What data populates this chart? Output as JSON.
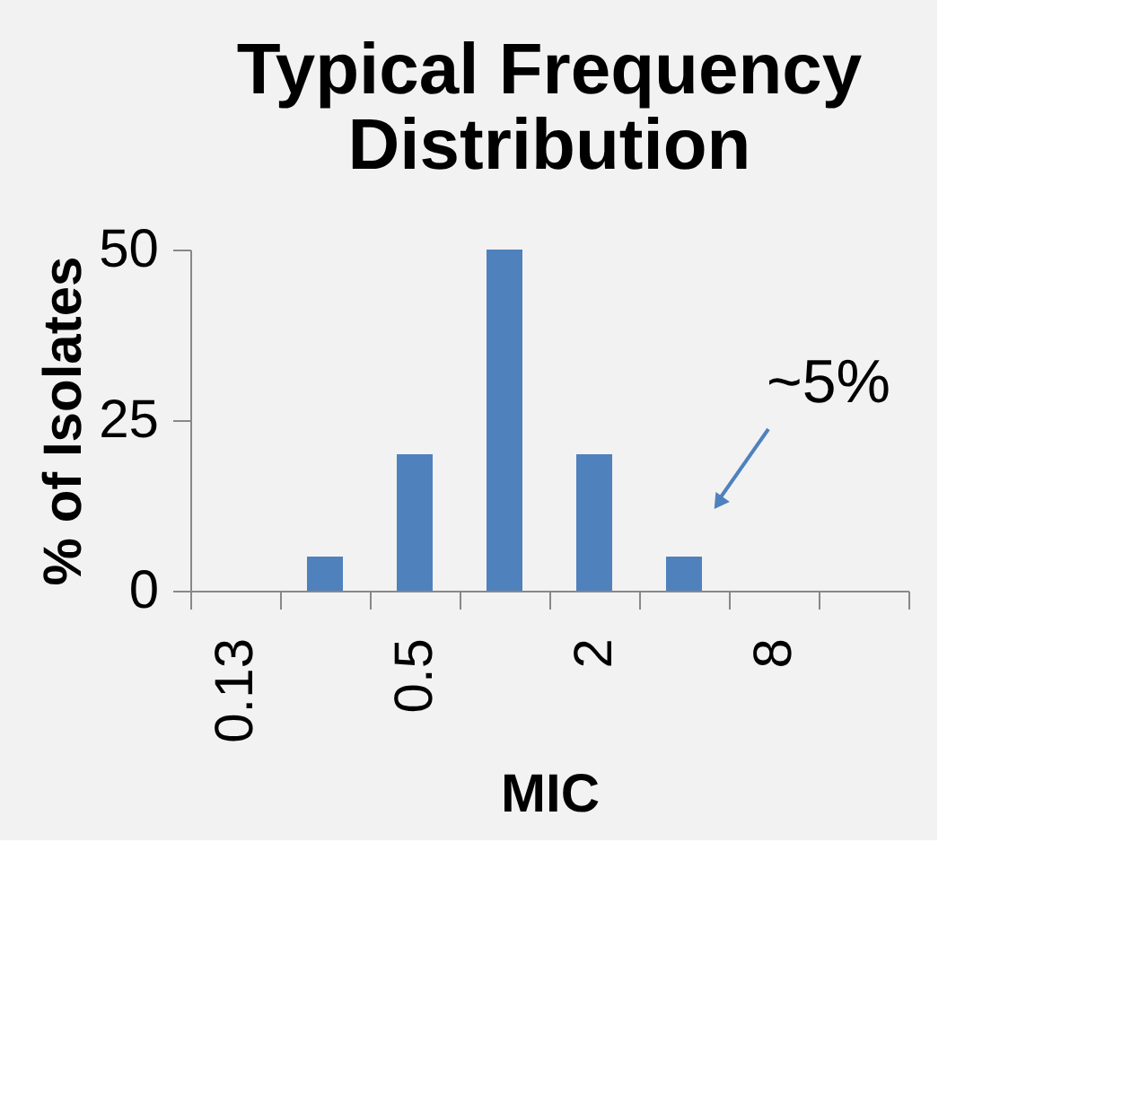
{
  "chart_data": {
    "type": "bar",
    "title": "Typical Frequency Distribution",
    "xlabel": "MIC",
    "ylabel": "% of Isolates",
    "categories": [
      "0.13",
      null,
      "0.5",
      null,
      "2",
      null,
      "8",
      null
    ],
    "values": [
      0,
      5,
      20,
      50,
      20,
      5,
      0,
      0
    ],
    "color": "#4f81bd",
    "ylim": [
      0,
      50
    ],
    "yticks": [
      0,
      25,
      50
    ],
    "grid": false,
    "annotations": [
      "~5%"
    ]
  }
}
